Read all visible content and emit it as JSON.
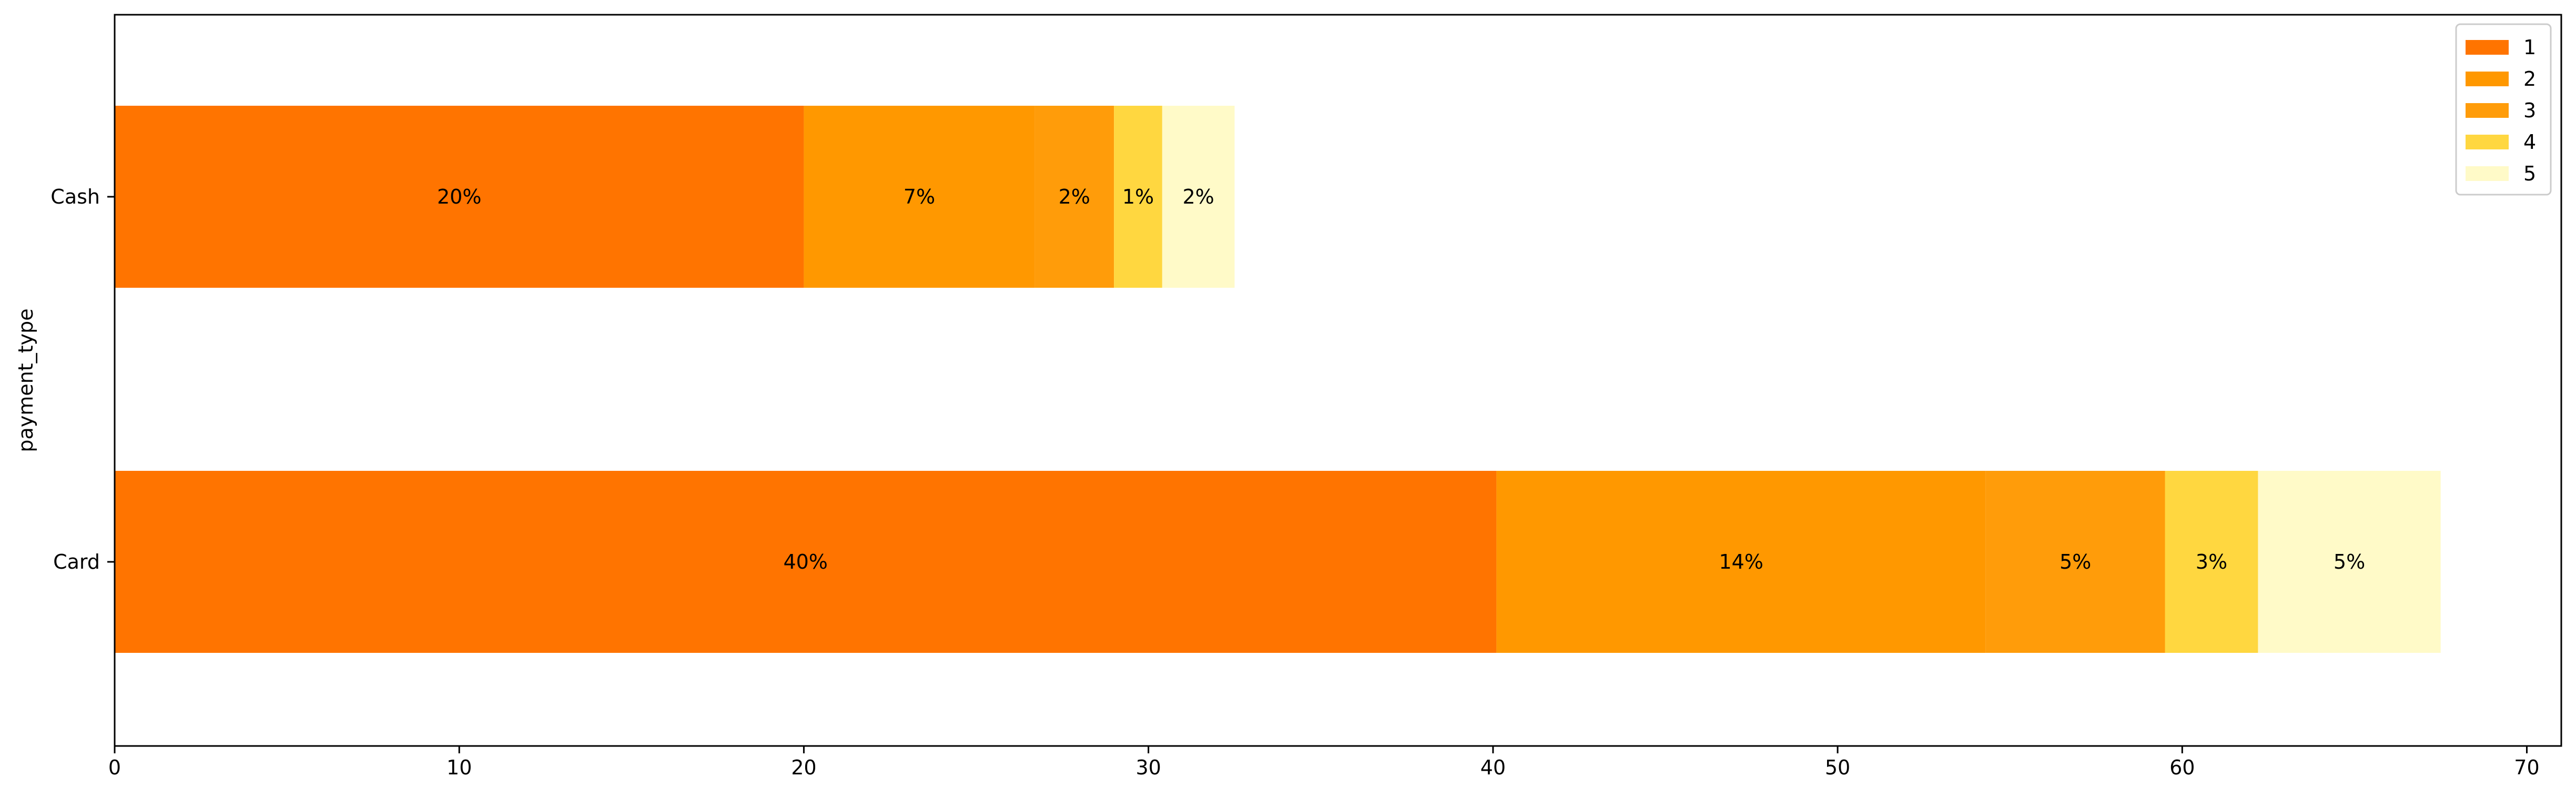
{
  "chart_data": {
    "type": "bar",
    "orientation": "horizontal",
    "stacked": true,
    "title": "",
    "xlabel": "",
    "ylabel": "payment_type",
    "categories": [
      "Card",
      "Cash"
    ],
    "xlim": [
      0,
      71
    ],
    "xticks": [
      "0",
      "10",
      "20",
      "30",
      "40",
      "50",
      "60",
      "70"
    ],
    "grid": false,
    "legend_position": "top-right",
    "series": [
      {
        "name": "1",
        "color": "#ff7400",
        "values": [
          40.1,
          20.0
        ],
        "labels": [
          "40%",
          "20%"
        ]
      },
      {
        "name": "2",
        "color": "#ff9800",
        "values": [
          14.2,
          6.7
        ],
        "labels": [
          "14%",
          "7%"
        ]
      },
      {
        "name": "3",
        "color": "#ff9c0a",
        "values": [
          5.2,
          2.3
        ],
        "labels": [
          "5%",
          "2%"
        ]
      },
      {
        "name": "4",
        "color": "#ffd740",
        "values": [
          2.7,
          1.4
        ],
        "labels": [
          "3%",
          "1%"
        ]
      },
      {
        "name": "5",
        "color": "#fffac8",
        "values": [
          5.3,
          2.1
        ],
        "labels": [
          "5%",
          "2%"
        ]
      }
    ]
  }
}
